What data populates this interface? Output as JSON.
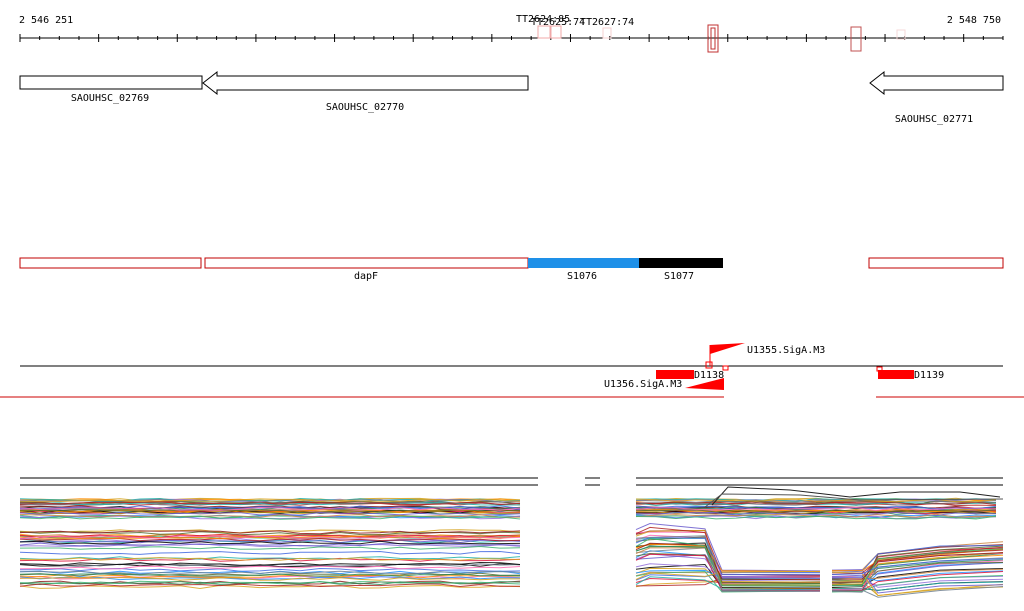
{
  "coords": {
    "start": "2 546 251",
    "end": "2 548 750"
  },
  "terminators": [
    {
      "label": "TT2624:85"
    },
    {
      "label": "TT2625:74"
    },
    {
      "label": "TT2627:74"
    }
  ],
  "genes": [
    {
      "label": "SAOUHSC_02769",
      "strand": "-"
    },
    {
      "label": "SAOUHSC_02770",
      "strand": "-"
    },
    {
      "label": "SAOUHSC_02771",
      "strand": "-"
    }
  ],
  "annotations": [
    {
      "label": "",
      "color": "#c00000",
      "fill": "none"
    },
    {
      "label": "dapF",
      "color": "#c00000",
      "fill": "none"
    },
    {
      "label": "S1076",
      "color": "#1e90e8",
      "fill": "#1e90e8"
    },
    {
      "label": "S1077",
      "color": "#000000",
      "fill": "#000000"
    },
    {
      "label": "",
      "color": "#c00000",
      "fill": "none"
    }
  ],
  "features": [
    {
      "label": "U1355.SigA.M3"
    },
    {
      "label": "U1356.SigA.M3"
    },
    {
      "label": "D1138"
    },
    {
      "label": "D1139"
    }
  ],
  "colors": {
    "gene_outline": "#000000",
    "feature_red": "#ff0000",
    "baseline_red": "#cc0000",
    "box_red": "#c00000"
  }
}
